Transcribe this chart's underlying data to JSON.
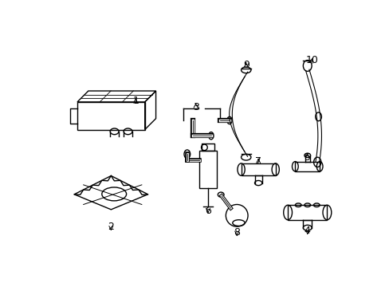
{
  "background_color": "#ffffff",
  "line_color": "#000000",
  "line_width": 1.0,
  "label_fontsize": 9
}
